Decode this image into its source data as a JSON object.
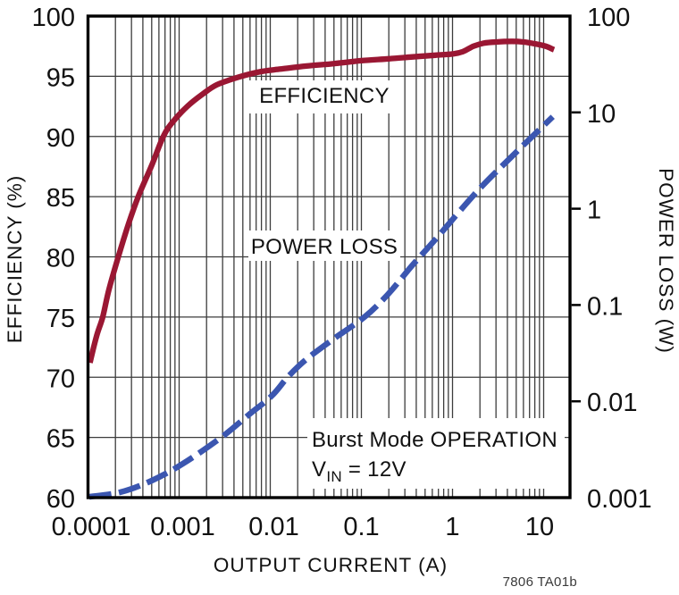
{
  "figure": {
    "background": "#ffffff",
    "note": "7806 TA01b"
  },
  "chart_data": {
    "type": "line",
    "title": "",
    "x_axis": {
      "label": "OUTPUT CURRENT (A)",
      "scale": "log",
      "min": 0.0001,
      "max": 19.5,
      "ticks": [
        0.0001,
        0.001,
        0.01,
        0.1,
        1,
        10
      ],
      "tick_labels": [
        "0.0001",
        "0.001",
        "0.01",
        "0.1",
        "1",
        "10"
      ],
      "grid": true
    },
    "y_left_axis": {
      "label": "EFFICIENCY (%)",
      "scale": "linear",
      "min": 60,
      "max": 100,
      "ticks": [
        60,
        65,
        70,
        75,
        80,
        85,
        90,
        95,
        100
      ],
      "tick_labels": [
        "60",
        "65",
        "70",
        "75",
        "80",
        "85",
        "90",
        "95",
        "100"
      ],
      "grid": true
    },
    "y_right_axis": {
      "label": "POWER LOSS (W)",
      "scale": "log",
      "min": 0.001,
      "max": 100,
      "ticks": [
        0.001,
        0.01,
        0.1,
        1,
        10,
        100
      ],
      "tick_labels": [
        "0.001",
        "0.01",
        "0.1",
        "1",
        "10",
        "100"
      ],
      "grid": false
    },
    "series": [
      {
        "name": "EFFICIENCY",
        "axis": "left",
        "color": "#9a1733",
        "style": "solid",
        "line_width": 6.3,
        "points": [
          [
            0.000105,
            71.2
          ],
          [
            0.000125,
            73.5
          ],
          [
            0.000145,
            75.0
          ],
          [
            0.00017,
            77.3
          ],
          [
            0.000217,
            80.1
          ],
          [
            0.00028,
            82.8
          ],
          [
            0.000356,
            85.0
          ],
          [
            0.0005,
            87.6
          ],
          [
            0.00067,
            90.0
          ],
          [
            0.00085,
            91.2
          ],
          [
            0.00123,
            92.5
          ],
          [
            0.0018,
            93.5
          ],
          [
            0.0026,
            94.3
          ],
          [
            0.0046,
            94.95
          ],
          [
            0.008,
            95.4
          ],
          [
            0.013,
            95.6
          ],
          [
            0.025,
            95.85
          ],
          [
            0.05,
            96.05
          ],
          [
            0.1,
            96.3
          ],
          [
            0.2,
            96.45
          ],
          [
            0.35,
            96.6
          ],
          [
            0.65,
            96.75
          ],
          [
            1.0,
            96.85
          ],
          [
            1.3,
            97.05
          ],
          [
            1.7,
            97.5
          ],
          [
            2.2,
            97.75
          ],
          [
            3.0,
            97.85
          ],
          [
            4.5,
            97.9
          ],
          [
            6.0,
            97.85
          ],
          [
            8.0,
            97.7
          ],
          [
            10.5,
            97.5
          ],
          [
            13.0,
            97.2
          ]
        ]
      },
      {
        "name": "POWER LOSS",
        "axis": "right",
        "color": "#3b56b0",
        "style": "dashed",
        "line_width": 6.5,
        "points": [
          [
            0.000103,
            0.00102
          ],
          [
            0.000227,
            0.00114
          ],
          [
            0.0005,
            0.0015
          ],
          [
            0.0011,
            0.00225
          ],
          [
            0.00288,
            0.0042
          ],
          [
            0.00566,
            0.0071
          ],
          [
            0.0104,
            0.0114
          ],
          [
            0.0156,
            0.0179
          ],
          [
            0.0244,
            0.0269
          ],
          [
            0.05,
            0.0447
          ],
          [
            0.108,
            0.075
          ],
          [
            0.194,
            0.128
          ],
          [
            0.356,
            0.253
          ],
          [
            0.7,
            0.52
          ],
          [
            1.92,
            1.56
          ],
          [
            4.7,
            3.65
          ],
          [
            12.6,
            9.0
          ]
        ]
      }
    ],
    "annotations": {
      "efficiency_label": "EFFICIENCY",
      "power_loss_label": "POWER LOSS",
      "burst_mode": "Burst Mode OPERATION",
      "vin": {
        "v": "V",
        "sub": "IN",
        "rest": " = 12V"
      }
    }
  }
}
